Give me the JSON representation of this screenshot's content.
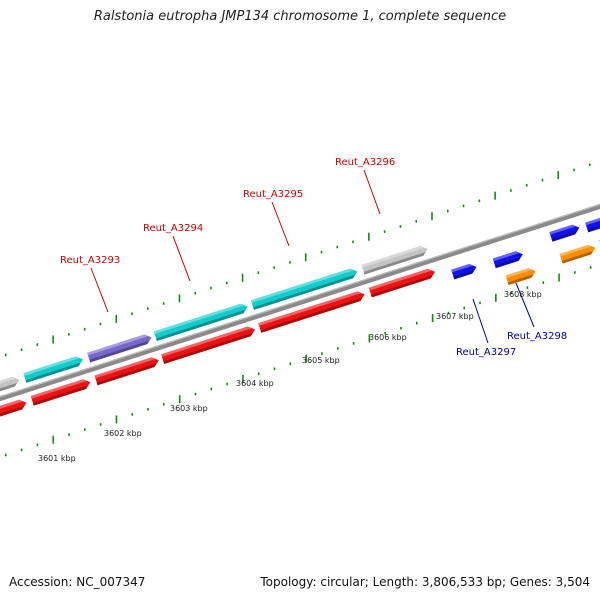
{
  "title": "Ralstonia eutropha JMP134 chromosome 1, complete sequence",
  "accession": "Accession: NC_007347",
  "summary": "Topology: circular; Length: 3,806,533 bp; Genes: 3,504",
  "colors": {
    "backbone": "#8a8a8a",
    "tick": "#138a13",
    "forward_label": "#cc0000",
    "reverse_label": "#00009e",
    "cds_red": "#ee1111",
    "rna_cyan": "#10cccc",
    "purple": "#7766cc",
    "gray": "#c4c4c4",
    "blue": "#1111ee",
    "orange": "#ff8c00",
    "steel": "#4a8ac0"
  },
  "scale_labels": [
    "3601 kbp",
    "3602 kbp",
    "3603 kbp",
    "3604 kbp",
    "3605 kbp",
    "3606 kbp",
    "3607 kbp",
    "3608 kbp"
  ],
  "gene_labels": {
    "forward": [
      "Reut_A3293",
      "Reut_A3294",
      "Reut_A3295",
      "Reut_A3296"
    ],
    "reverse": [
      "Reut_A3297",
      "Reut_A3298"
    ]
  }
}
